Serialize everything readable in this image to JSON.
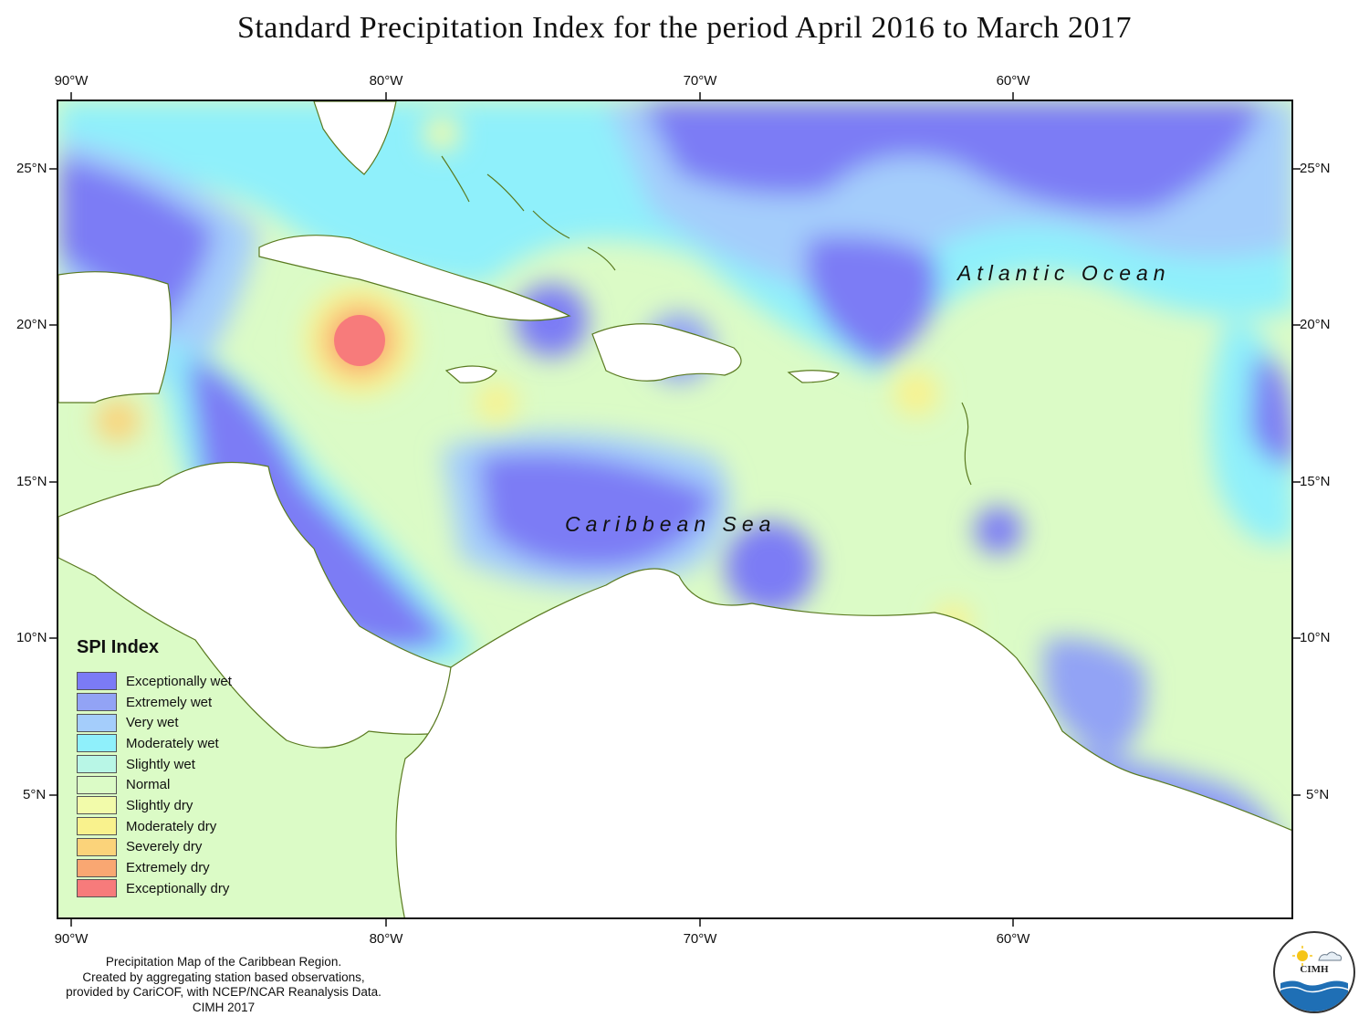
{
  "title": "Standard Precipitation Index for the period April 2016 to March 2017",
  "axes": {
    "longitude_labels": [
      "90°W",
      "80°W",
      "70°W",
      "60°W"
    ],
    "latitude_labels": [
      "25°N",
      "20°N",
      "15°N",
      "10°N",
      "5°N"
    ]
  },
  "map": {
    "regions": [
      "Atlantic Ocean",
      "Caribbean Sea"
    ],
    "extent": {
      "lon": [
        -90.5,
        -51
      ],
      "lat": [
        1.2,
        27.2
      ]
    }
  },
  "legend": {
    "title": "SPI Index",
    "items": [
      {
        "label": "Exceptionally wet",
        "color": "#7b7bf5"
      },
      {
        "label": "Extremely wet",
        "color": "#92a3f5"
      },
      {
        "label": "Very wet",
        "color": "#a4cdfb"
      },
      {
        "label": "Moderately wet",
        "color": "#8ff0fb"
      },
      {
        "label": "Slightly wet",
        "color": "#b8f6e6"
      },
      {
        "label": "Normal",
        "color": "#dbfbc6"
      },
      {
        "label": "Slightly dry",
        "color": "#f2fbaa"
      },
      {
        "label": "Moderately dry",
        "color": "#f9f28d"
      },
      {
        "label": "Severely dry",
        "color": "#fbd37a"
      },
      {
        "label": "Extremely dry",
        "color": "#f9a772"
      },
      {
        "label": "Exceptionally dry",
        "color": "#f77b7b"
      }
    ]
  },
  "credits": [
    "Precipitation Map of the Caribbean Region.",
    "Created by aggregating station based observations,",
    "provided by CariCOF, with NCEP/NCAR Reanalysis Data.",
    "CIMH 2017"
  ],
  "logo": {
    "text": "CIMH",
    "icon": "cimh-logo-icon"
  }
}
